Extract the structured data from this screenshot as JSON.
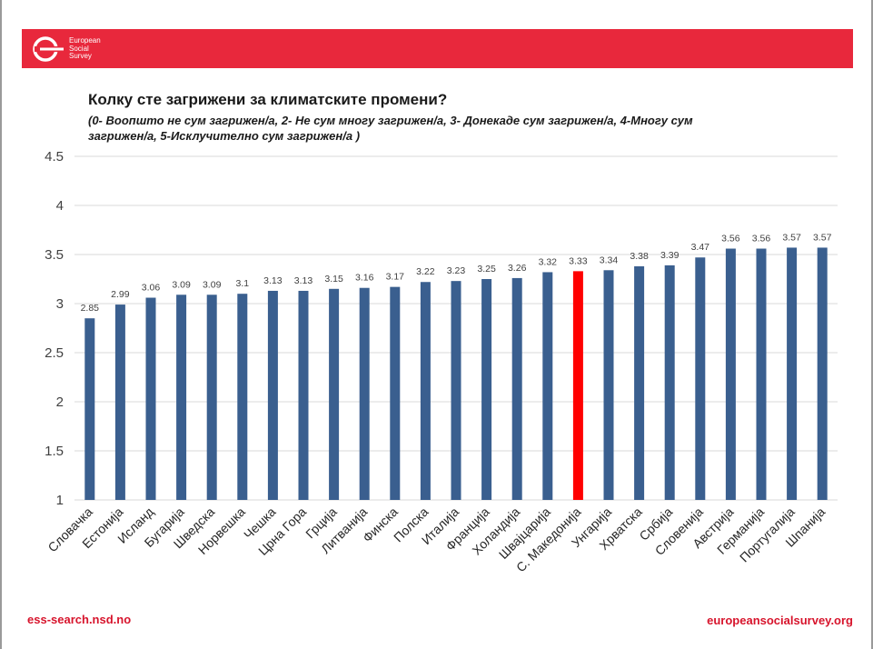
{
  "header": {
    "logo_lines": [
      "European",
      "Social",
      "Survey"
    ],
    "brand_color": "#e8283c"
  },
  "chart_data": {
    "type": "bar",
    "title": "Колку сте загрижени за климатските промени?",
    "subtitle": "(0- Воопшто не сум загрижен/а, 2- Не сум многу загрижен/а, 3- Донекаде сум загрижен/а, 4-Многу сум загрижен/а, 5-Исклучително сум загрижен/а )",
    "categories": [
      "Словачка",
      "Естонија",
      "Исланд",
      "Бугарија",
      "Шведска",
      "Норвешка",
      "Чешка",
      "Црна Гора",
      "Грција",
      "Литванија",
      "Финска",
      "Полска",
      "Италија",
      "Франција",
      "Холандија",
      "Швајцарија",
      "С. Македонија",
      "Унгарија",
      "Хрватска",
      "Србија",
      "Словенија",
      "Австрија",
      "Германија",
      "Португалија",
      "Шпанија"
    ],
    "values": [
      2.85,
      2.99,
      3.06,
      3.09,
      3.09,
      3.1,
      3.13,
      3.13,
      3.15,
      3.16,
      3.17,
      3.22,
      3.23,
      3.25,
      3.26,
      3.32,
      3.33,
      3.34,
      3.38,
      3.39,
      3.47,
      3.56,
      3.56,
      3.57,
      3.57
    ],
    "value_labels": [
      "2.85",
      "2.99",
      "3.06",
      "3.09",
      "3.09",
      "3.1",
      "3.13",
      "3.13",
      "3.15",
      "3.16",
      "3.17",
      "3.22",
      "3.23",
      "3.25",
      "3.26",
      "3.32",
      "3.33",
      "3.34",
      "3.38",
      "3.39",
      "3.47",
      "3.56",
      "3.56",
      "3.57",
      "3.57"
    ],
    "ylim": [
      1,
      4.5
    ],
    "yticks": [
      "1",
      "1.5",
      "2",
      "2.5",
      "3",
      "3.5",
      "4",
      "4.5"
    ],
    "grid": true,
    "bar_color": "#3a5f8f",
    "highlight_category": "С. Македонија",
    "highlight_color": "#ff0000"
  },
  "footer": {
    "left_link": "ess-search.nsd.no",
    "right_link": "europeansocialsurvey.org"
  }
}
